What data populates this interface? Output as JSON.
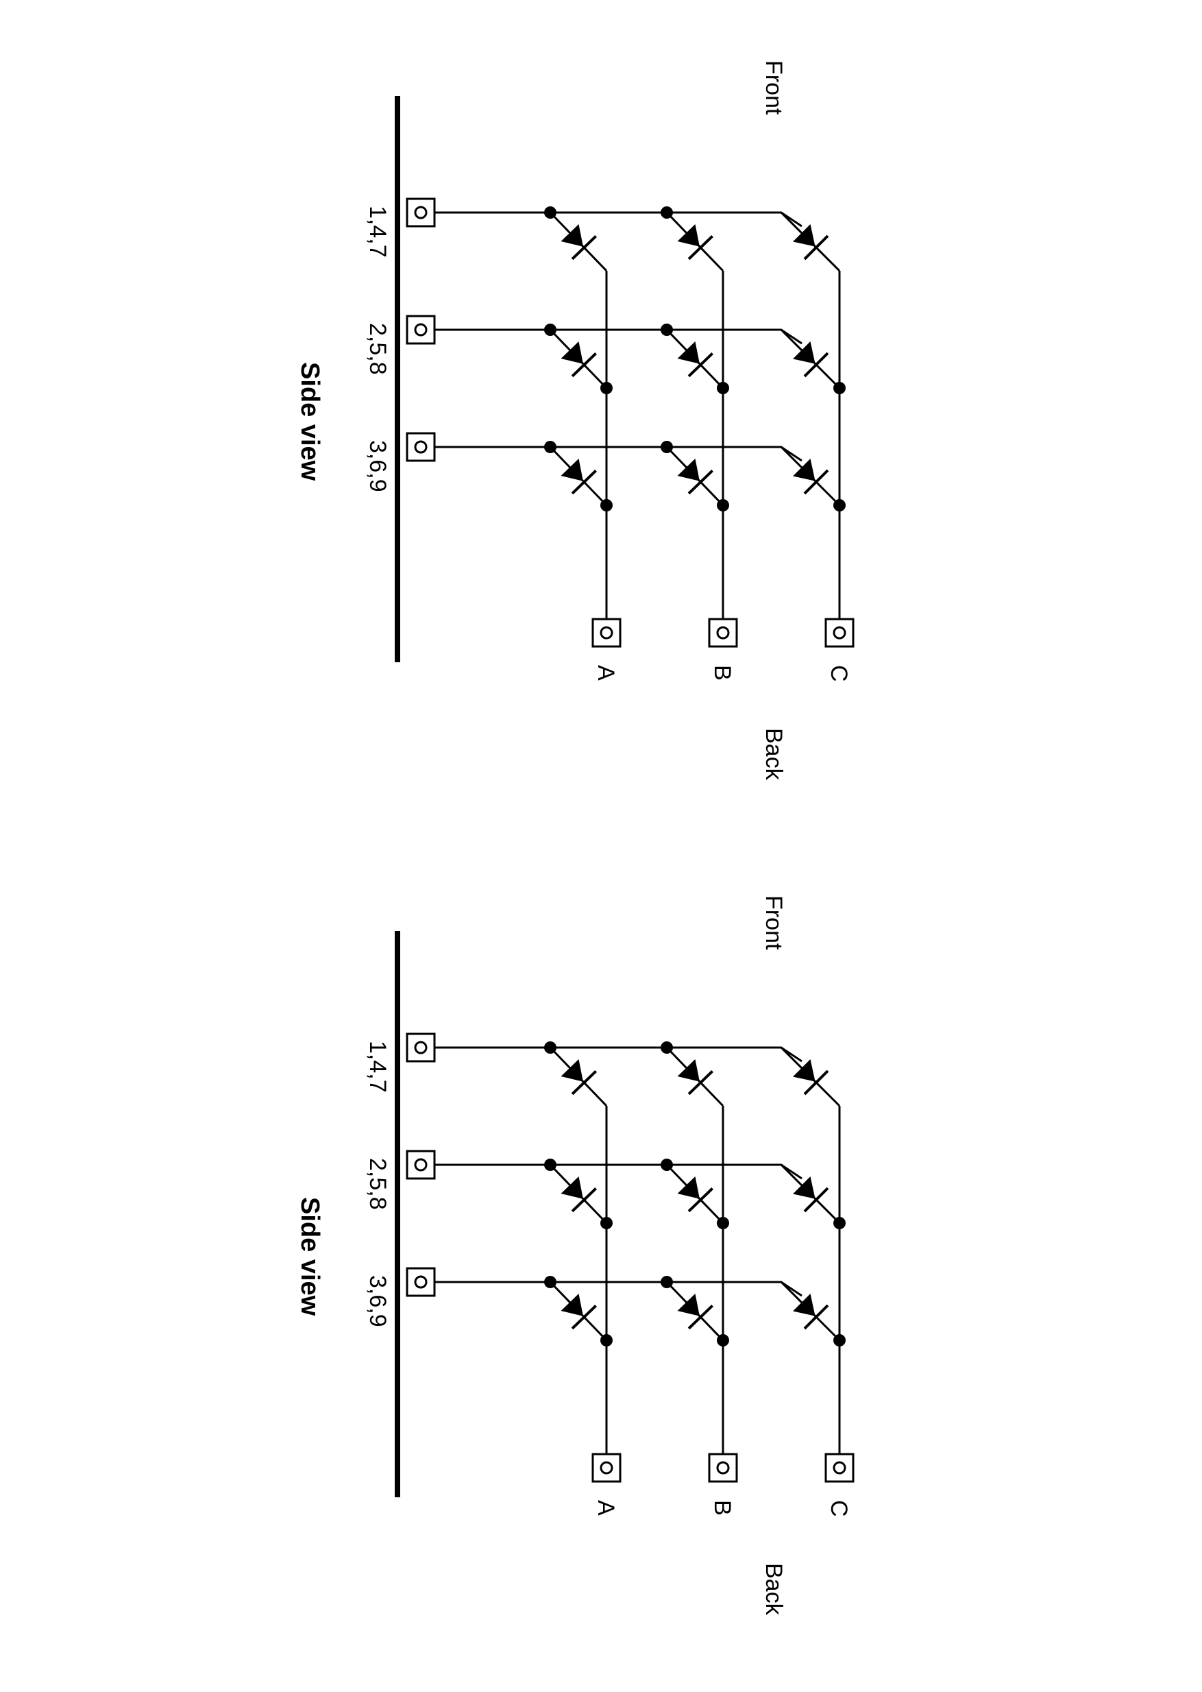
{
  "diagrams": [
    {
      "title": "Side view",
      "front_label": "Front",
      "back_label": "Back",
      "row_terminals": [
        "1,4,7",
        "2,5,8",
        "3,6,9"
      ],
      "column_terminals": [
        "A",
        "B",
        "C"
      ]
    },
    {
      "title": "Side view",
      "front_label": "Front",
      "back_label": "Back",
      "row_terminals": [
        "1,4,7",
        "2,5,8",
        "3,6,9"
      ],
      "column_terminals": [
        "A",
        "B",
        "C"
      ]
    }
  ],
  "colors": {
    "ink": "#000000",
    "background": "#ffffff"
  }
}
